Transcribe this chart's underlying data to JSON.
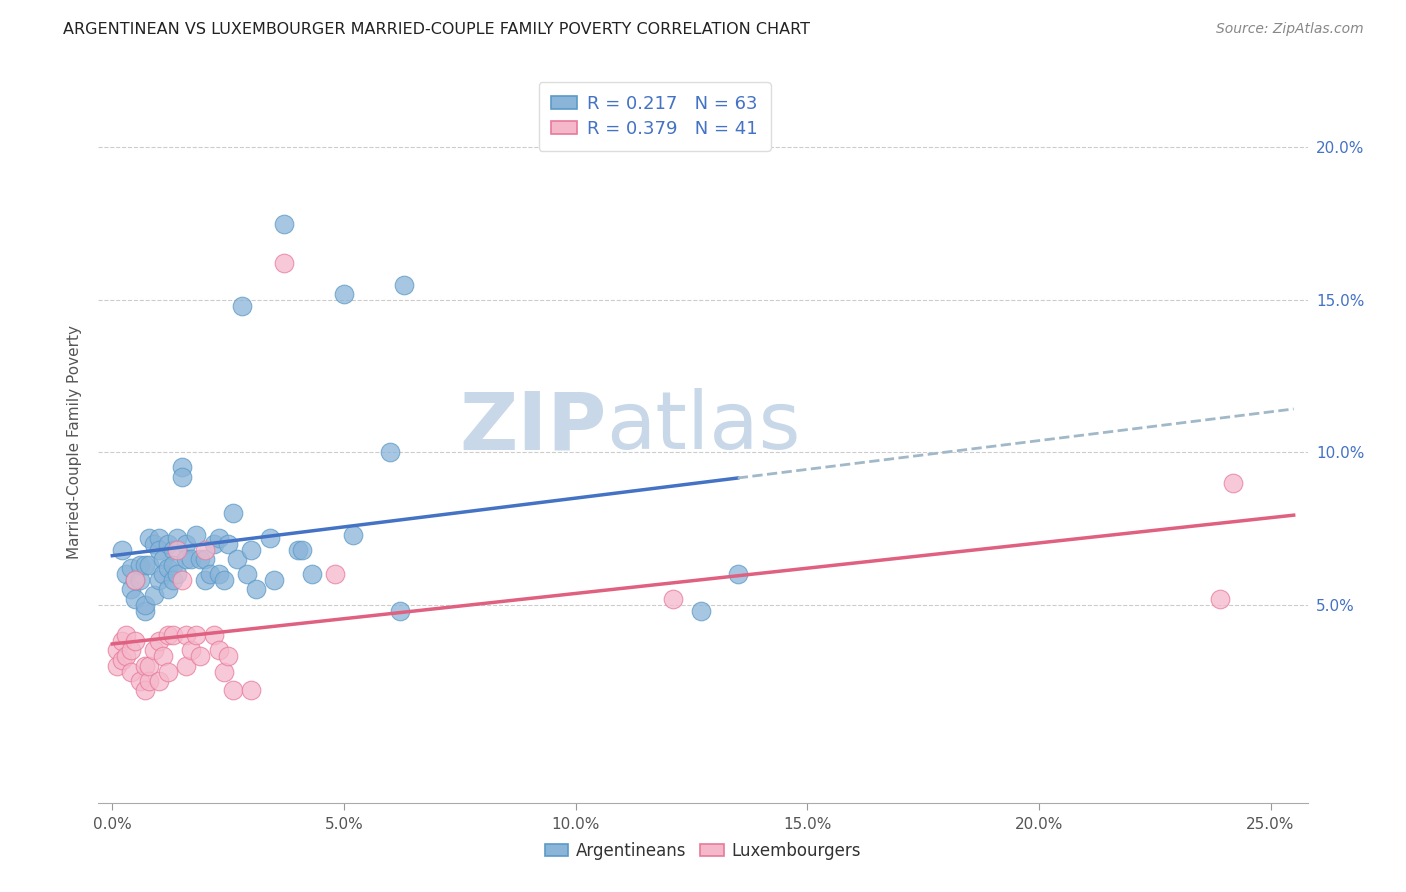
{
  "title": "ARGENTINEAN VS LUXEMBOURGER MARRIED-COUPLE FAMILY POVERTY CORRELATION CHART",
  "source": "Source: ZipAtlas.com",
  "xlabel_ticks": [
    "0.0%",
    "5.0%",
    "10.0%",
    "15.0%",
    "20.0%",
    "25.0%"
  ],
  "xlabel_vals": [
    0.0,
    0.05,
    0.1,
    0.15,
    0.2,
    0.25
  ],
  "ylabel": "Married-Couple Family Poverty",
  "right_yticks": [
    "5.0%",
    "10.0%",
    "15.0%",
    "20.0%"
  ],
  "right_ytick_vals": [
    0.05,
    0.1,
    0.15,
    0.2
  ],
  "blue_dot_color": "#8ab4d8",
  "blue_edge_color": "#5a9ac8",
  "pink_dot_color": "#f5b8cb",
  "pink_edge_color": "#e8799a",
  "blue_line_color": "#4472c4",
  "pink_line_color": "#e06080",
  "dash_line_color": "#a0b8c8",
  "watermark_zip_color": "#c8d8e8",
  "watermark_atlas_color": "#c8d8e8",
  "r_blue": 0.217,
  "n_blue": 63,
  "r_pink": 0.379,
  "n_pink": 41,
  "legend_label_blue": "Argentineans",
  "legend_label_pink": "Luxembourgers",
  "legend_text_color": "#4472c4",
  "blue_scatter": [
    [
      0.002,
      0.068
    ],
    [
      0.003,
      0.06
    ],
    [
      0.004,
      0.062
    ],
    [
      0.004,
      0.055
    ],
    [
      0.005,
      0.058
    ],
    [
      0.005,
      0.052
    ],
    [
      0.006,
      0.058
    ],
    [
      0.006,
      0.063
    ],
    [
      0.007,
      0.063
    ],
    [
      0.007,
      0.048
    ],
    [
      0.007,
      0.05
    ],
    [
      0.008,
      0.072
    ],
    [
      0.008,
      0.063
    ],
    [
      0.009,
      0.07
    ],
    [
      0.009,
      0.053
    ],
    [
      0.01,
      0.072
    ],
    [
      0.01,
      0.068
    ],
    [
      0.01,
      0.058
    ],
    [
      0.011,
      0.065
    ],
    [
      0.011,
      0.06
    ],
    [
      0.012,
      0.07
    ],
    [
      0.012,
      0.062
    ],
    [
      0.012,
      0.055
    ],
    [
      0.013,
      0.068
    ],
    [
      0.013,
      0.063
    ],
    [
      0.013,
      0.058
    ],
    [
      0.014,
      0.072
    ],
    [
      0.014,
      0.06
    ],
    [
      0.015,
      0.095
    ],
    [
      0.015,
      0.092
    ],
    [
      0.016,
      0.07
    ],
    [
      0.016,
      0.065
    ],
    [
      0.017,
      0.065
    ],
    [
      0.018,
      0.073
    ],
    [
      0.019,
      0.065
    ],
    [
      0.02,
      0.065
    ],
    [
      0.02,
      0.058
    ],
    [
      0.021,
      0.06
    ],
    [
      0.022,
      0.07
    ],
    [
      0.023,
      0.072
    ],
    [
      0.023,
      0.06
    ],
    [
      0.024,
      0.058
    ],
    [
      0.025,
      0.07
    ],
    [
      0.026,
      0.08
    ],
    [
      0.027,
      0.065
    ],
    [
      0.028,
      0.148
    ],
    [
      0.029,
      0.06
    ],
    [
      0.03,
      0.068
    ],
    [
      0.031,
      0.055
    ],
    [
      0.034,
      0.072
    ],
    [
      0.035,
      0.058
    ],
    [
      0.037,
      0.175
    ],
    [
      0.04,
      0.068
    ],
    [
      0.041,
      0.068
    ],
    [
      0.043,
      0.06
    ],
    [
      0.05,
      0.152
    ],
    [
      0.052,
      0.073
    ],
    [
      0.06,
      0.1
    ],
    [
      0.062,
      0.048
    ],
    [
      0.063,
      0.155
    ],
    [
      0.127,
      0.048
    ],
    [
      0.135,
      0.06
    ]
  ],
  "pink_scatter": [
    [
      0.001,
      0.035
    ],
    [
      0.001,
      0.03
    ],
    [
      0.002,
      0.038
    ],
    [
      0.002,
      0.032
    ],
    [
      0.003,
      0.04
    ],
    [
      0.003,
      0.033
    ],
    [
      0.004,
      0.035
    ],
    [
      0.004,
      0.028
    ],
    [
      0.005,
      0.058
    ],
    [
      0.005,
      0.038
    ],
    [
      0.006,
      0.025
    ],
    [
      0.007,
      0.03
    ],
    [
      0.007,
      0.022
    ],
    [
      0.008,
      0.025
    ],
    [
      0.008,
      0.03
    ],
    [
      0.009,
      0.035
    ],
    [
      0.01,
      0.038
    ],
    [
      0.01,
      0.025
    ],
    [
      0.011,
      0.033
    ],
    [
      0.012,
      0.04
    ],
    [
      0.012,
      0.028
    ],
    [
      0.013,
      0.04
    ],
    [
      0.014,
      0.068
    ],
    [
      0.015,
      0.058
    ],
    [
      0.016,
      0.04
    ],
    [
      0.016,
      0.03
    ],
    [
      0.017,
      0.035
    ],
    [
      0.018,
      0.04
    ],
    [
      0.019,
      0.033
    ],
    [
      0.02,
      0.068
    ],
    [
      0.022,
      0.04
    ],
    [
      0.023,
      0.035
    ],
    [
      0.024,
      0.028
    ],
    [
      0.025,
      0.033
    ],
    [
      0.026,
      0.022
    ],
    [
      0.03,
      0.022
    ],
    [
      0.037,
      0.162
    ],
    [
      0.048,
      0.06
    ],
    [
      0.121,
      0.052
    ],
    [
      0.239,
      0.052
    ],
    [
      0.242,
      0.09
    ]
  ],
  "blue_line_x_end": 0.135,
  "xlim": [
    -0.003,
    0.258
  ],
  "ylim": [
    -0.015,
    0.222
  ]
}
